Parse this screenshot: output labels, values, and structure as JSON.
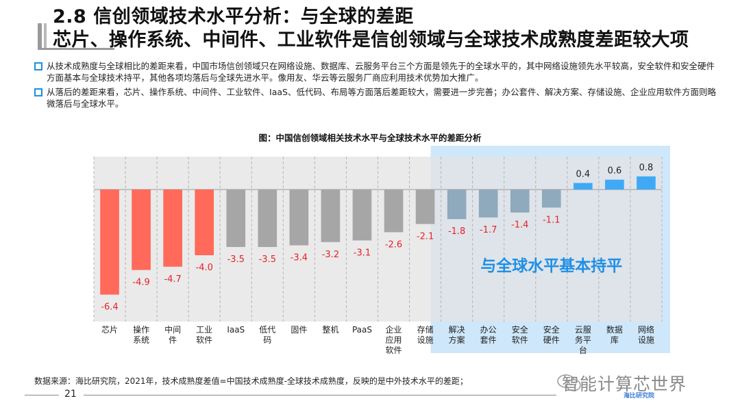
{
  "header": {
    "title_line1": "2.8 信创领域技术水平分析：与全球的差距",
    "title_line2": "芯片、操作系统、中间件、工业软件是信创领域与全球技术成熟度差距较大项"
  },
  "bullets": [
    "从技术成熟度与全球相比的差距来看，中国市场信创领域只在网络设施、数据库、云服务平台三个方面是领先于的全球水平的，其中网络设施领先水平较高，安全软件和安全硬件方面基本与全球技术持平，其他各项均落后与全球先进水平。像用友、华云等云服务厂商应利用技术优势加大推广。",
    "从落后的差距来看，芯片、操作系统、中间件、工业软件、IaaS、低代码、布局等方面落后差距较大，需要进一步完善；办公套件、解决方案、存储设施、企业应用软件方面则略微落后与全球水平。"
  ],
  "chart_data": {
    "type": "bar",
    "title": "图：中国信创领域相关技术水平与全球技术水平的差距分析",
    "categories": [
      "芯片",
      "操作系统",
      "中间件",
      "工业软件",
      "IaaS",
      "低代码",
      "固件",
      "整机",
      "PaaS",
      "企业应用软件",
      "存储设施",
      "解决方案",
      "办公套件",
      "安全软件",
      "安全硬件",
      "云服务平台",
      "数据库",
      "网络设施"
    ],
    "category_labels": [
      [
        "芯片"
      ],
      [
        "操作",
        "系统"
      ],
      [
        "中间",
        "件"
      ],
      [
        "工业",
        "软件"
      ],
      [
        "IaaS"
      ],
      [
        "低代",
        "码"
      ],
      [
        "固件"
      ],
      [
        "整机"
      ],
      [
        "PaaS"
      ],
      [
        "企业",
        "应用",
        "软件"
      ],
      [
        "存储",
        "设施"
      ],
      [
        "解决",
        "方案"
      ],
      [
        "办公",
        "套件"
      ],
      [
        "安全",
        "软件"
      ],
      [
        "安全",
        "硬件"
      ],
      [
        "云服",
        "务平",
        "台"
      ],
      [
        "数据",
        "库"
      ],
      [
        "网络",
        "设施"
      ]
    ],
    "values": [
      -6.4,
      -4.9,
      -4.7,
      -4.0,
      -3.5,
      -3.5,
      -3.4,
      -3.2,
      -3.1,
      -2.6,
      -2.1,
      -1.8,
      -1.7,
      -1.4,
      -1.1,
      0.4,
      0.6,
      0.8
    ],
    "value_labels": [
      "-6.4",
      "-4.9",
      "-4.7",
      "-4.0",
      "-3.5",
      "-3.5",
      "-3.4",
      "-3.2",
      "-3.1",
      "-2.6",
      "-2.1",
      "-1.8",
      "-1.7",
      "-1.4",
      "-1.1",
      "0.4",
      "0.6",
      "0.8"
    ],
    "groups": [
      "red",
      "red",
      "red",
      "red",
      "gray",
      "gray",
      "gray",
      "gray",
      "gray",
      "gray",
      "gray",
      "gray",
      "gray",
      "gray",
      "gray",
      "blue",
      "blue",
      "blue"
    ],
    "ylim": [
      -8,
      2
    ],
    "grid": "vertical-dashed",
    "annotation": "与全球水平基本持平",
    "highlight_range": [
      11,
      17
    ],
    "xlabel": "",
    "ylabel": ""
  },
  "colors": {
    "red": "#ff6a5a",
    "gray": "#a6a6a6",
    "blue": "#3fa9f5",
    "label_red": "#e8202a",
    "highlight": "#a8d4f5",
    "plot_bg": "#e3e3e3",
    "annotation": "#1e8fe8"
  },
  "footer": {
    "source": "数据来源：海比研究院，2021年，技术成熟度差值=中国技术成熟度-全球技术成熟度，反映的是中外技术水平的差距；",
    "page_number": "21",
    "brand": "智能计算芯世界",
    "logo": "海比研究院"
  }
}
